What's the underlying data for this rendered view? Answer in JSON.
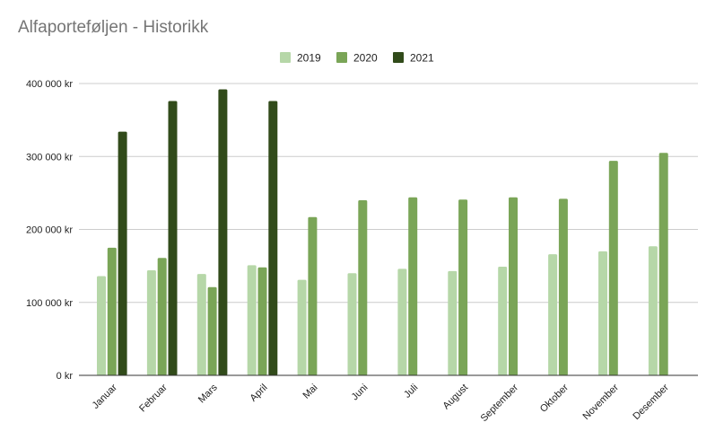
{
  "chart_data": {
    "type": "bar",
    "title": "Alfaporteføljen - Historikk",
    "xlabel": "",
    "ylabel": "",
    "categories": [
      "Januar",
      "Februar",
      "Mars",
      "April",
      "Mai",
      "Juni",
      "Juli",
      "August",
      "September",
      "Oktober",
      "November",
      "Desember"
    ],
    "series": [
      {
        "name": "2019",
        "color": "#b6d7a8",
        "values": [
          136000,
          144000,
          139000,
          151000,
          131000,
          140000,
          146000,
          143000,
          149000,
          166000,
          170000,
          177000
        ]
      },
      {
        "name": "2020",
        "color": "#7aa557",
        "values": [
          175000,
          161000,
          121000,
          148000,
          217000,
          240000,
          244000,
          241000,
          244000,
          242000,
          294000,
          305000
        ]
      },
      {
        "name": "2021",
        "color": "#314b1a",
        "values": [
          334000,
          376000,
          392000,
          376000,
          null,
          null,
          null,
          null,
          null,
          null,
          null,
          null
        ]
      }
    ],
    "ylim": [
      0,
      400000
    ],
    "yticks": [
      0,
      100000,
      200000,
      300000,
      400000
    ],
    "ytick_labels": [
      "0 kr",
      "100 000 kr",
      "200 000 kr",
      "300 000 kr",
      "400 000 kr"
    ],
    "grid": true,
    "legend_position": "top-center",
    "colors": {
      "title": "#757575",
      "gridline": "#cccccc",
      "axis": "#333333",
      "text": "#222222"
    }
  }
}
